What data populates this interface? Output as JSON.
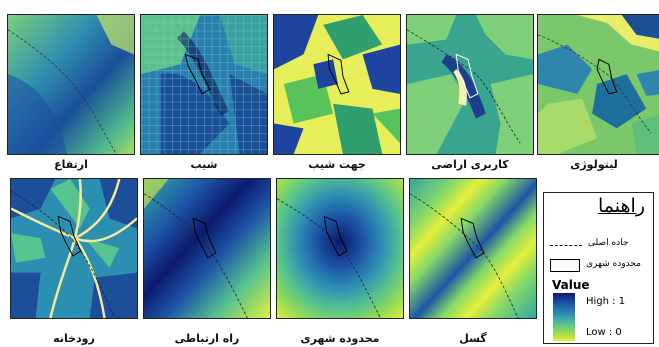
{
  "panels": {
    "elevation": {
      "caption": "ارتفاع"
    },
    "slope": {
      "caption": "شیب"
    },
    "aspect": {
      "caption": "جهت شیب"
    },
    "landuse": {
      "caption": "کاربری اراضی"
    },
    "lithology": {
      "caption": "لیتولوژی"
    },
    "river": {
      "caption": "رودخانه"
    },
    "road": {
      "caption": "راه ارتباطی"
    },
    "urban": {
      "caption": "محدوده شهری"
    },
    "fault": {
      "caption": "گسل"
    }
  },
  "legend": {
    "title": "راهنما",
    "main_road": "جاده اصلی",
    "urban_boundary": "محدوده شهری",
    "value_label": "Value",
    "high_label": "High : 1",
    "low_label": "Low : 0"
  },
  "colors": {
    "dark_navy": "#0c1a6e",
    "blue": "#1d55a6",
    "teal": "#2e8fb4",
    "green": "#57c38e",
    "lime": "#94db54",
    "yellow": "#e2ef3a",
    "river_line": "#f7e99a"
  }
}
